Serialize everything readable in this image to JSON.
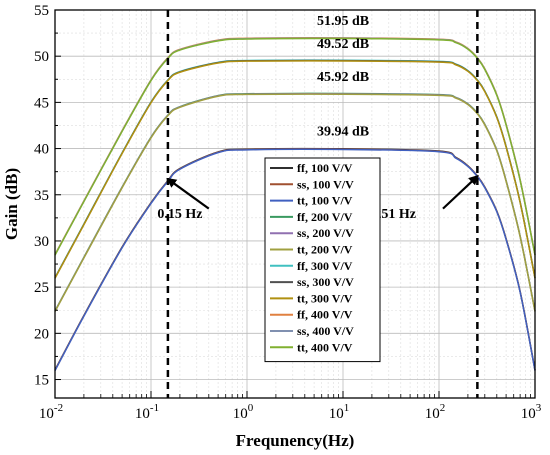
{
  "chart_data": {
    "type": "line",
    "xlabel": "Frequnency(Hz)",
    "ylabel": "Gain (dB)",
    "xscale": "log",
    "xlim": [
      0.01,
      1000
    ],
    "ylim": [
      13,
      55
    ],
    "x_ticks": [
      0.01,
      0.1,
      1,
      10,
      100,
      1000
    ],
    "x_tick_labels": [
      {
        "base": "10",
        "exp": "-2"
      },
      {
        "base": "10",
        "exp": "-1"
      },
      {
        "base": "10",
        "exp": "0"
      },
      {
        "base": "10",
        "exp": "1"
      },
      {
        "base": "10",
        "exp": "2"
      },
      {
        "base": "10",
        "exp": "3"
      }
    ],
    "y_ticks": [
      15,
      20,
      25,
      30,
      35,
      40,
      45,
      50,
      55
    ],
    "y_tick_labels": [
      "15",
      "20",
      "25",
      "30",
      "35",
      "40",
      "45",
      "50",
      "55"
    ],
    "grid": true,
    "legend_position": "center",
    "x": [
      0.01,
      0.02,
      0.05,
      0.1,
      0.15,
      0.2,
      0.5,
      1,
      10,
      100,
      150,
      200,
      251,
      300,
      400,
      500,
      700,
      1000
    ],
    "series": [
      {
        "name": "ff, 100 V/V",
        "color": "#2f2f2f",
        "group": 1
      },
      {
        "name": "ss, 100 V/V",
        "color": "#a05030",
        "group": 1
      },
      {
        "name": "tt, 100 V/V",
        "color": "#4060c0",
        "group": 1,
        "values": [
          16.0,
          21.9,
          29.3,
          34.1,
          36.5,
          37.8,
          39.6,
          39.9,
          39.94,
          39.7,
          39.0,
          38.1,
          37.0,
          35.8,
          33.2,
          30.2,
          24.5,
          16.0
        ]
      },
      {
        "name": "ff, 200 V/V",
        "color": "#3a9a60",
        "group": 2
      },
      {
        "name": "ss, 200 V/V",
        "color": "#9070b0",
        "group": 2
      },
      {
        "name": "tt, 200 V/V",
        "color": "#a0a040",
        "group": 2,
        "values": [
          22.4,
          28.2,
          35.8,
          41.2,
          43.6,
          44.5,
          45.7,
          45.9,
          45.92,
          45.8,
          45.5,
          44.8,
          43.8,
          42.6,
          39.8,
          36.5,
          30.5,
          22.4
        ]
      },
      {
        "name": "ff, 300 V/V",
        "color": "#40c0c0",
        "group": 3
      },
      {
        "name": "ss, 300 V/V",
        "color": "#505050",
        "group": 3
      },
      {
        "name": "tt, 300 V/V",
        "color": "#b09010",
        "group": 3,
        "values": [
          26.0,
          31.8,
          39.5,
          45.0,
          47.4,
          48.3,
          49.3,
          49.5,
          49.52,
          49.4,
          49.1,
          48.4,
          47.4,
          46.2,
          43.4,
          40.2,
          34.2,
          26.0
        ]
      },
      {
        "name": "ff, 400 V/V",
        "color": "#e08040",
        "group": 4
      },
      {
        "name": "ss, 400 V/V",
        "color": "#8090b0",
        "group": 4
      },
      {
        "name": "tt, 400 V/V",
        "color": "#80b030",
        "group": 4,
        "values": [
          28.5,
          34.3,
          41.9,
          47.4,
          49.8,
          50.7,
          51.7,
          51.9,
          51.95,
          51.8,
          51.5,
          50.8,
          49.8,
          48.6,
          45.8,
          42.6,
          36.6,
          28.5
        ]
      }
    ],
    "annotations": [
      {
        "text": "51.95 dB",
        "x": 10,
        "y": 53.4
      },
      {
        "text": "49.52 dB",
        "x": 10,
        "y": 50.9
      },
      {
        "text": "45.92 dB",
        "x": 10,
        "y": 47.3
      },
      {
        "text": "39.94 dB",
        "x": 10,
        "y": 41.4
      },
      {
        "text": "0.15 Hz",
        "x": 0.2,
        "y": 32.5
      },
      {
        "text": "251 Hz",
        "x": 35,
        "y": 32.5
      }
    ],
    "vlines": [
      0.15,
      251
    ],
    "arrows": [
      {
        "from": [
          0.4,
          33.5
        ],
        "to": [
          0.15,
          36.7
        ]
      },
      {
        "from": [
          110,
          33.5
        ],
        "to": [
          251,
          37.0
        ]
      }
    ]
  }
}
